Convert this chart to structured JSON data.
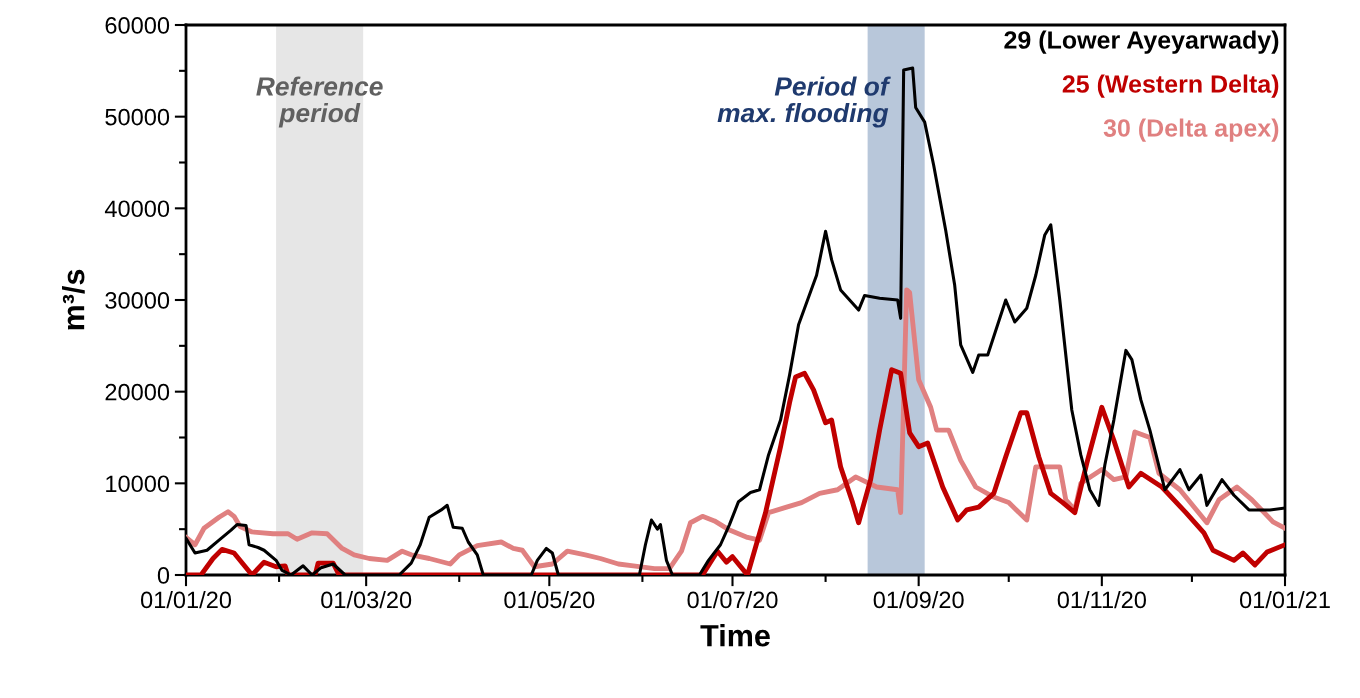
{
  "chart_data": {
    "type": "line",
    "xlabel": "Time",
    "ylabel": "m³/s",
    "xlim": [
      "2020-01-01",
      "2021-01-01"
    ],
    "ylim": [
      0,
      60000
    ],
    "yticks": [
      0,
      {
        "value": 5000,
        "label": null
      },
      10000,
      {
        "value": 15000,
        "label": null
      },
      20000,
      {
        "value": 25000,
        "label": null
      },
      30000,
      {
        "value": 35000,
        "label": null
      },
      40000,
      {
        "value": 45000,
        "label": null
      },
      50000,
      {
        "value": 55000,
        "label": null
      },
      60000
    ],
    "xticks": [
      {
        "value": "2020-01-01",
        "label": "01/01/20"
      },
      {
        "value": "2020-02-01",
        "label": null
      },
      {
        "value": "2020-03-01",
        "label": "01/03/20"
      },
      {
        "value": "2020-04-01",
        "label": null
      },
      {
        "value": "2020-05-01",
        "label": "01/05/20"
      },
      {
        "value": "2020-06-01",
        "label": null
      },
      {
        "value": "2020-07-01",
        "label": "01/07/20"
      },
      {
        "value": "2020-08-01",
        "label": null
      },
      {
        "value": "2020-09-01",
        "label": "01/09/20"
      },
      {
        "value": "2020-10-01",
        "label": null
      },
      {
        "value": "2020-11-01",
        "label": "01/11/20"
      },
      {
        "value": "2020-12-01",
        "label": null
      },
      {
        "value": "2021-01-01",
        "label": "01/01/21"
      }
    ],
    "grid": false,
    "legend": "top right",
    "marker": "none",
    "line_style": "solid",
    "bands": [
      {
        "axis": "x",
        "from": "2020-01-31",
        "to": "2020-02-29",
        "label": "Reference\nperiod",
        "color": "#e6e6e6"
      },
      {
        "axis": "x",
        "from": "2020-08-15",
        "to": "2020-09-03",
        "label": "Period of\nmax. flooding",
        "color": "#b8c7da"
      }
    ],
    "series": [
      {
        "name": "29 (Lower Ayeyarwady)",
        "color": "#000000",
        "x": [
          "2020-01-01",
          "2020-01-04",
          "2020-01-08",
          "2020-01-12",
          "2020-01-16",
          "2020-01-18",
          "2020-01-21",
          "2020-01-22",
          "2020-01-25",
          "2020-01-27",
          "2020-01-31",
          "2020-02-02",
          "2020-02-05",
          "2020-02-09",
          "2020-02-12",
          "2020-02-15",
          "2020-02-19",
          "2020-02-23",
          "2020-03-12",
          "2020-03-16",
          "2020-03-19",
          "2020-03-22",
          "2020-03-26",
          "2020-03-28",
          "2020-03-30",
          "2020-04-02",
          "2020-04-04",
          "2020-04-07",
          "2020-04-09",
          "2020-04-25",
          "2020-04-27",
          "2020-04-30",
          "2020-05-02",
          "2020-05-04",
          "2020-05-31",
          "2020-06-02",
          "2020-06-04",
          "2020-06-06",
          "2020-06-07",
          "2020-06-09",
          "2020-06-11",
          "2020-06-20",
          "2020-06-23",
          "2020-06-27",
          "2020-06-30",
          "2020-07-03",
          "2020-07-07",
          "2020-07-10",
          "2020-07-13",
          "2020-07-17",
          "2020-07-20",
          "2020-07-23",
          "2020-07-26",
          "2020-07-29",
          "2020-08-01",
          "2020-08-03",
          "2020-08-06",
          "2020-08-12",
          "2020-08-14",
          "2020-08-19",
          "2020-08-25",
          "2020-08-26",
          "2020-08-27",
          "2020-08-30",
          "2020-08-31",
          "2020-09-03",
          "2020-09-06",
          "2020-09-10",
          "2020-09-13",
          "2020-09-15",
          "2020-09-19",
          "2020-09-21",
          "2020-09-24",
          "2020-09-30",
          "2020-10-03",
          "2020-10-07",
          "2020-10-10",
          "2020-10-13",
          "2020-10-15",
          "2020-10-18",
          "2020-10-22",
          "2020-10-25",
          "2020-10-28",
          "2020-10-31",
          "2020-11-02",
          "2020-11-05",
          "2020-11-09",
          "2020-11-11",
          "2020-11-14",
          "2020-11-17",
          "2020-11-22",
          "2020-11-27",
          "2020-11-30",
          "2020-12-04",
          "2020-12-06",
          "2020-12-11",
          "2020-12-15",
          "2020-12-20",
          "2020-12-27",
          "2021-01-01"
        ],
        "values": [
          4000,
          2400,
          2700,
          3800,
          4900,
          5500,
          5400,
          3300,
          3000,
          2700,
          1600,
          500,
          0,
          1000,
          0,
          800,
          1200,
          0,
          0,
          1300,
          3300,
          6300,
          7100,
          7600,
          5200,
          5100,
          3600,
          2200,
          0,
          0,
          1600,
          2900,
          2400,
          0,
          0,
          3300,
          6000,
          5000,
          5500,
          1600,
          0,
          0,
          1600,
          3300,
          5500,
          8000,
          9000,
          9300,
          13100,
          16900,
          21800,
          27300,
          30000,
          32700,
          37500,
          34400,
          31100,
          28900,
          30500,
          30200,
          30000,
          28000,
          55100,
          55300,
          51000,
          49400,
          44700,
          37600,
          31600,
          25100,
          22100,
          24000,
          24000,
          30000,
          27600,
          29100,
          32700,
          37100,
          38200,
          30000,
          18000,
          13100,
          9300,
          7600,
          12000,
          16900,
          24500,
          23500,
          19100,
          15800,
          9300,
          11500,
          9300,
          10900,
          7600,
          10400,
          8700,
          7100,
          7100,
          7300
        ]
      },
      {
        "name": "25 (Western Delta)",
        "color": "#c00000",
        "x": [
          "2020-01-01",
          "2020-01-06",
          "2020-01-10",
          "2020-01-13",
          "2020-01-17",
          "2020-01-20",
          "2020-01-23",
          "2020-01-27",
          "2020-01-31",
          "2020-02-03",
          "2020-02-04",
          "2020-02-13",
          "2020-02-14",
          "2020-02-19",
          "2020-02-21",
          "2020-06-21",
          "2020-06-26",
          "2020-06-29",
          "2020-07-01",
          "2020-07-06",
          "2020-07-12",
          "2020-07-17",
          "2020-07-20",
          "2020-07-22",
          "2020-07-25",
          "2020-07-28",
          "2020-08-01",
          "2020-08-03",
          "2020-08-06",
          "2020-08-10",
          "2020-08-12",
          "2020-08-16",
          "2020-08-19",
          "2020-08-23",
          "2020-08-26",
          "2020-08-29",
          "2020-09-01",
          "2020-09-04",
          "2020-09-09",
          "2020-09-14",
          "2020-09-17",
          "2020-09-21",
          "2020-09-26",
          "2020-09-30",
          "2020-10-05",
          "2020-10-07",
          "2020-10-11",
          "2020-10-15",
          "2020-10-19",
          "2020-10-23",
          "2020-10-27",
          "2020-11-01",
          "2020-11-05",
          "2020-11-10",
          "2020-11-14",
          "2020-11-21",
          "2020-11-29",
          "2020-12-05",
          "2020-12-08",
          "2020-12-15",
          "2020-12-18",
          "2020-12-22",
          "2020-12-26",
          "2021-01-01"
        ],
        "values": [
          0,
          0,
          1800,
          2800,
          2400,
          1200,
          0,
          1400,
          900,
          1000,
          0,
          0,
          1300,
          1300,
          0,
          0,
          2600,
          1400,
          2000,
          0,
          6800,
          14000,
          18800,
          21600,
          22000,
          20200,
          16600,
          16900,
          11800,
          7900,
          5700,
          10400,
          15800,
          22400,
          22000,
          15500,
          14000,
          14400,
          9600,
          6000,
          7100,
          7400,
          8900,
          12900,
          17700,
          17700,
          12900,
          8900,
          7900,
          6800,
          12200,
          18300,
          14700,
          9600,
          11100,
          9600,
          6800,
          4600,
          2700,
          1600,
          2400,
          1100,
          2500,
          3300
        ]
      },
      {
        "name": "30 (Delta apex)",
        "color": "#e08080",
        "x": [
          "2020-01-01",
          "2020-01-04",
          "2020-01-07",
          "2020-01-12",
          "2020-01-15",
          "2020-01-17",
          "2020-01-19",
          "2020-01-23",
          "2020-01-30",
          "2020-02-04",
          "2020-02-07",
          "2020-02-12",
          "2020-02-17",
          "2020-02-22",
          "2020-02-26",
          "2020-03-02",
          "2020-03-08",
          "2020-03-13",
          "2020-03-16",
          "2020-03-22",
          "2020-03-29",
          "2020-04-01",
          "2020-04-07",
          "2020-04-15",
          "2020-04-19",
          "2020-04-22",
          "2020-04-26",
          "2020-05-02",
          "2020-05-07",
          "2020-05-13",
          "2020-05-18",
          "2020-05-24",
          "2020-05-29",
          "2020-06-05",
          "2020-06-10",
          "2020-06-14",
          "2020-06-17",
          "2020-06-21",
          "2020-06-25",
          "2020-06-30",
          "2020-07-06",
          "2020-07-10",
          "2020-07-13",
          "2020-07-19",
          "2020-07-24",
          "2020-07-30",
          "2020-08-05",
          "2020-08-11",
          "2020-08-18",
          "2020-08-25",
          "2020-08-26",
          "2020-08-28",
          "2020-08-29",
          "2020-09-01",
          "2020-09-05",
          "2020-09-07",
          "2020-09-11",
          "2020-09-15",
          "2020-09-20",
          "2020-09-26",
          "2020-10-01",
          "2020-10-07",
          "2020-10-10",
          "2020-10-18",
          "2020-10-20",
          "2020-10-23",
          "2020-10-25",
          "2020-11-01",
          "2020-11-05",
          "2020-11-09",
          "2020-11-12",
          "2020-11-17",
          "2020-11-20",
          "2020-11-27",
          "2020-12-06",
          "2020-12-10",
          "2020-12-16",
          "2020-12-21",
          "2020-12-28",
          "2021-01-01"
        ],
        "values": [
          4100,
          3300,
          5100,
          6300,
          6900,
          6400,
          5300,
          4700,
          4500,
          4500,
          3900,
          4600,
          4500,
          2900,
          2200,
          1800,
          1600,
          2600,
          2200,
          1800,
          1200,
          2200,
          3200,
          3600,
          2900,
          2700,
          900,
          1200,
          2600,
          2200,
          1800,
          1200,
          1000,
          700,
          700,
          2600,
          5700,
          6400,
          5900,
          4900,
          4100,
          3800,
          6800,
          7400,
          7900,
          8900,
          9300,
          10700,
          9600,
          9300,
          6800,
          31100,
          30800,
          21300,
          18300,
          15800,
          15800,
          12500,
          9600,
          8500,
          7900,
          6000,
          11800,
          11800,
          8200,
          7100,
          10000,
          11500,
          10400,
          10700,
          15600,
          15000,
          11100,
          9300,
          5700,
          8200,
          9600,
          8200,
          5800,
          5100
        ]
      }
    ]
  }
}
